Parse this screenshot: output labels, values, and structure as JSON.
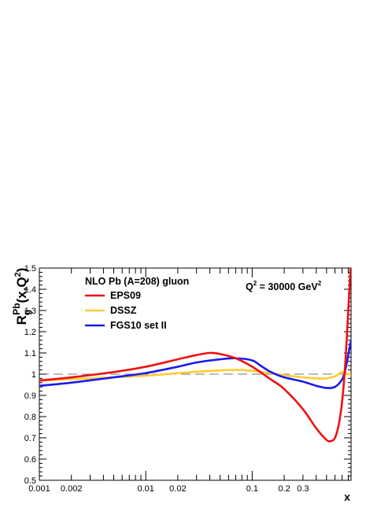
{
  "chart_data": {
    "type": "line",
    "title": "NLO Pb (A=208) gluon",
    "annotation": "Q² = 30000 GeV²",
    "annotation_parts": {
      "base": "Q",
      "exp": "2",
      "rest": " = 30000 GeV",
      "exp2": "2"
    },
    "xlabel": "x",
    "ylabel_parts": {
      "base": "R",
      "sub": "g",
      "sup": "Pb",
      "arg": "(x,Q",
      "arg_exp": "2",
      "close": ")"
    },
    "xscale": "log",
    "xlim": [
      0.001,
      0.85
    ],
    "ylim": [
      0.5,
      1.5
    ],
    "x_tick_labels": [
      {
        "value": 0.001,
        "label": "0.001"
      },
      {
        "value": 0.002,
        "label": "0.002"
      },
      {
        "value": 0.01,
        "label": "0.01"
      },
      {
        "value": 0.02,
        "label": "0.02"
      },
      {
        "value": 0.1,
        "label": "0.1"
      },
      {
        "value": 0.2,
        "label": "0.2"
      },
      {
        "value": 0.3,
        "label": "0.3"
      }
    ],
    "y_ticks": [
      0.5,
      0.6,
      0.7,
      0.8,
      0.9,
      1.0,
      1.1,
      1.2,
      1.3,
      1.4,
      1.5
    ],
    "y_tick_labels": [
      "0.5",
      "0.6",
      "0.7",
      "0.8",
      "0.9",
      "1",
      "1.1",
      "1.2",
      "1.3",
      "1.4",
      "1.5"
    ],
    "reference_line": 1.0,
    "legend_position": "top-left",
    "series": [
      {
        "name": "EPS09",
        "color": "#ee1111",
        "points": [
          [
            0.001,
            0.97
          ],
          [
            0.002,
            0.985
          ],
          [
            0.005,
            1.01
          ],
          [
            0.01,
            1.035
          ],
          [
            0.02,
            1.07
          ],
          [
            0.03,
            1.09
          ],
          [
            0.04,
            1.1
          ],
          [
            0.05,
            1.095
          ],
          [
            0.07,
            1.075
          ],
          [
            0.1,
            1.035
          ],
          [
            0.15,
            0.975
          ],
          [
            0.2,
            0.93
          ],
          [
            0.3,
            0.835
          ],
          [
            0.4,
            0.745
          ],
          [
            0.5,
            0.69
          ],
          [
            0.55,
            0.685
          ],
          [
            0.6,
            0.7
          ],
          [
            0.65,
            0.76
          ],
          [
            0.7,
            0.87
          ],
          [
            0.75,
            1.05
          ],
          [
            0.8,
            1.3
          ],
          [
            0.84,
            1.5
          ]
        ]
      },
      {
        "name": "DSSZ",
        "color": "#ffcc33",
        "points": [
          [
            0.001,
            0.97
          ],
          [
            0.003,
            0.98
          ],
          [
            0.01,
            0.993
          ],
          [
            0.02,
            1.005
          ],
          [
            0.05,
            1.018
          ],
          [
            0.08,
            1.02
          ],
          [
            0.1,
            1.015
          ],
          [
            0.15,
            1.005
          ],
          [
            0.2,
            0.995
          ],
          [
            0.3,
            0.985
          ],
          [
            0.4,
            0.98
          ],
          [
            0.5,
            0.98
          ],
          [
            0.6,
            0.99
          ],
          [
            0.7,
            1.01
          ],
          [
            0.8,
            1.0
          ],
          [
            0.85,
            0.995
          ]
        ]
      },
      {
        "name": "FGS10 set II",
        "color": "#1a1aee",
        "points": [
          [
            0.001,
            0.945
          ],
          [
            0.002,
            0.96
          ],
          [
            0.005,
            0.985
          ],
          [
            0.01,
            1.005
          ],
          [
            0.02,
            1.035
          ],
          [
            0.03,
            1.055
          ],
          [
            0.05,
            1.07
          ],
          [
            0.07,
            1.075
          ],
          [
            0.1,
            1.065
          ],
          [
            0.12,
            1.04
          ],
          [
            0.15,
            1.01
          ],
          [
            0.2,
            0.985
          ],
          [
            0.3,
            0.965
          ],
          [
            0.4,
            0.945
          ],
          [
            0.5,
            0.935
          ],
          [
            0.6,
            0.94
          ],
          [
            0.7,
            0.975
          ],
          [
            0.75,
            1.02
          ],
          [
            0.8,
            1.09
          ],
          [
            0.85,
            1.16
          ]
        ]
      }
    ]
  }
}
